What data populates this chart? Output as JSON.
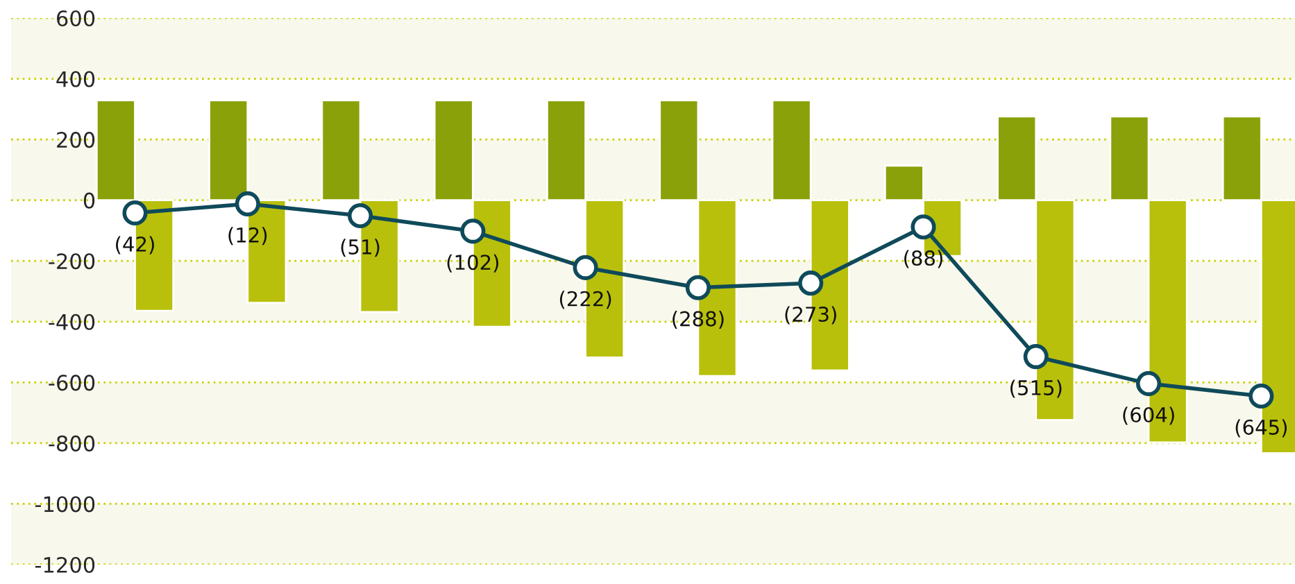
{
  "chart_data": {
    "type": "bar",
    "categories": [
      null,
      null,
      null,
      null,
      null,
      null,
      null,
      null,
      null,
      null,
      null
    ],
    "series": [
      {
        "color": "#8ba10a",
        "values": [
          329,
          329,
          329,
          329,
          329,
          329,
          329,
          114,
          276,
          276,
          276
        ]
      },
      {
        "color": "#b8c00b",
        "values": [
          -364,
          -338,
          -368,
          -417,
          -518,
          -579,
          -561,
          -184,
          -724,
          -798,
          -833
        ]
      },
      {
        "type": "line",
        "color": "#0f4a5a",
        "marker": "circle",
        "values": [
          -42,
          -12,
          -51,
          -102,
          -222,
          -288,
          -273,
          -88,
          -515,
          -604,
          -645
        ],
        "value_labels": [
          "(42)",
          "(12)",
          "(51)",
          "(102)",
          "(222)",
          "(288)",
          "(273)",
          "(88)",
          "(515)",
          "(604)",
          "(645)"
        ]
      }
    ],
    "ylim": [
      -1200,
      600
    ],
    "yticks": [
      600,
      400,
      200,
      0,
      -200,
      -400,
      -600,
      -800,
      -1000,
      -1200
    ],
    "grid": "y",
    "tick_labels": "y",
    "bands": [
      {
        "axis": "y",
        "from": 400,
        "to": 600,
        "color": "#f8f8ec"
      },
      {
        "axis": "y",
        "from": 0,
        "to": 200,
        "color": "#f8f8ec"
      },
      {
        "axis": "y",
        "from": -400,
        "to": -200,
        "color": "#f8f8ec"
      },
      {
        "axis": "y",
        "from": -800,
        "to": -600,
        "color": "#f8f8ec"
      },
      {
        "axis": "y",
        "from": -1200,
        "to": -1000,
        "color": "#f8f8ec"
      }
    ]
  }
}
